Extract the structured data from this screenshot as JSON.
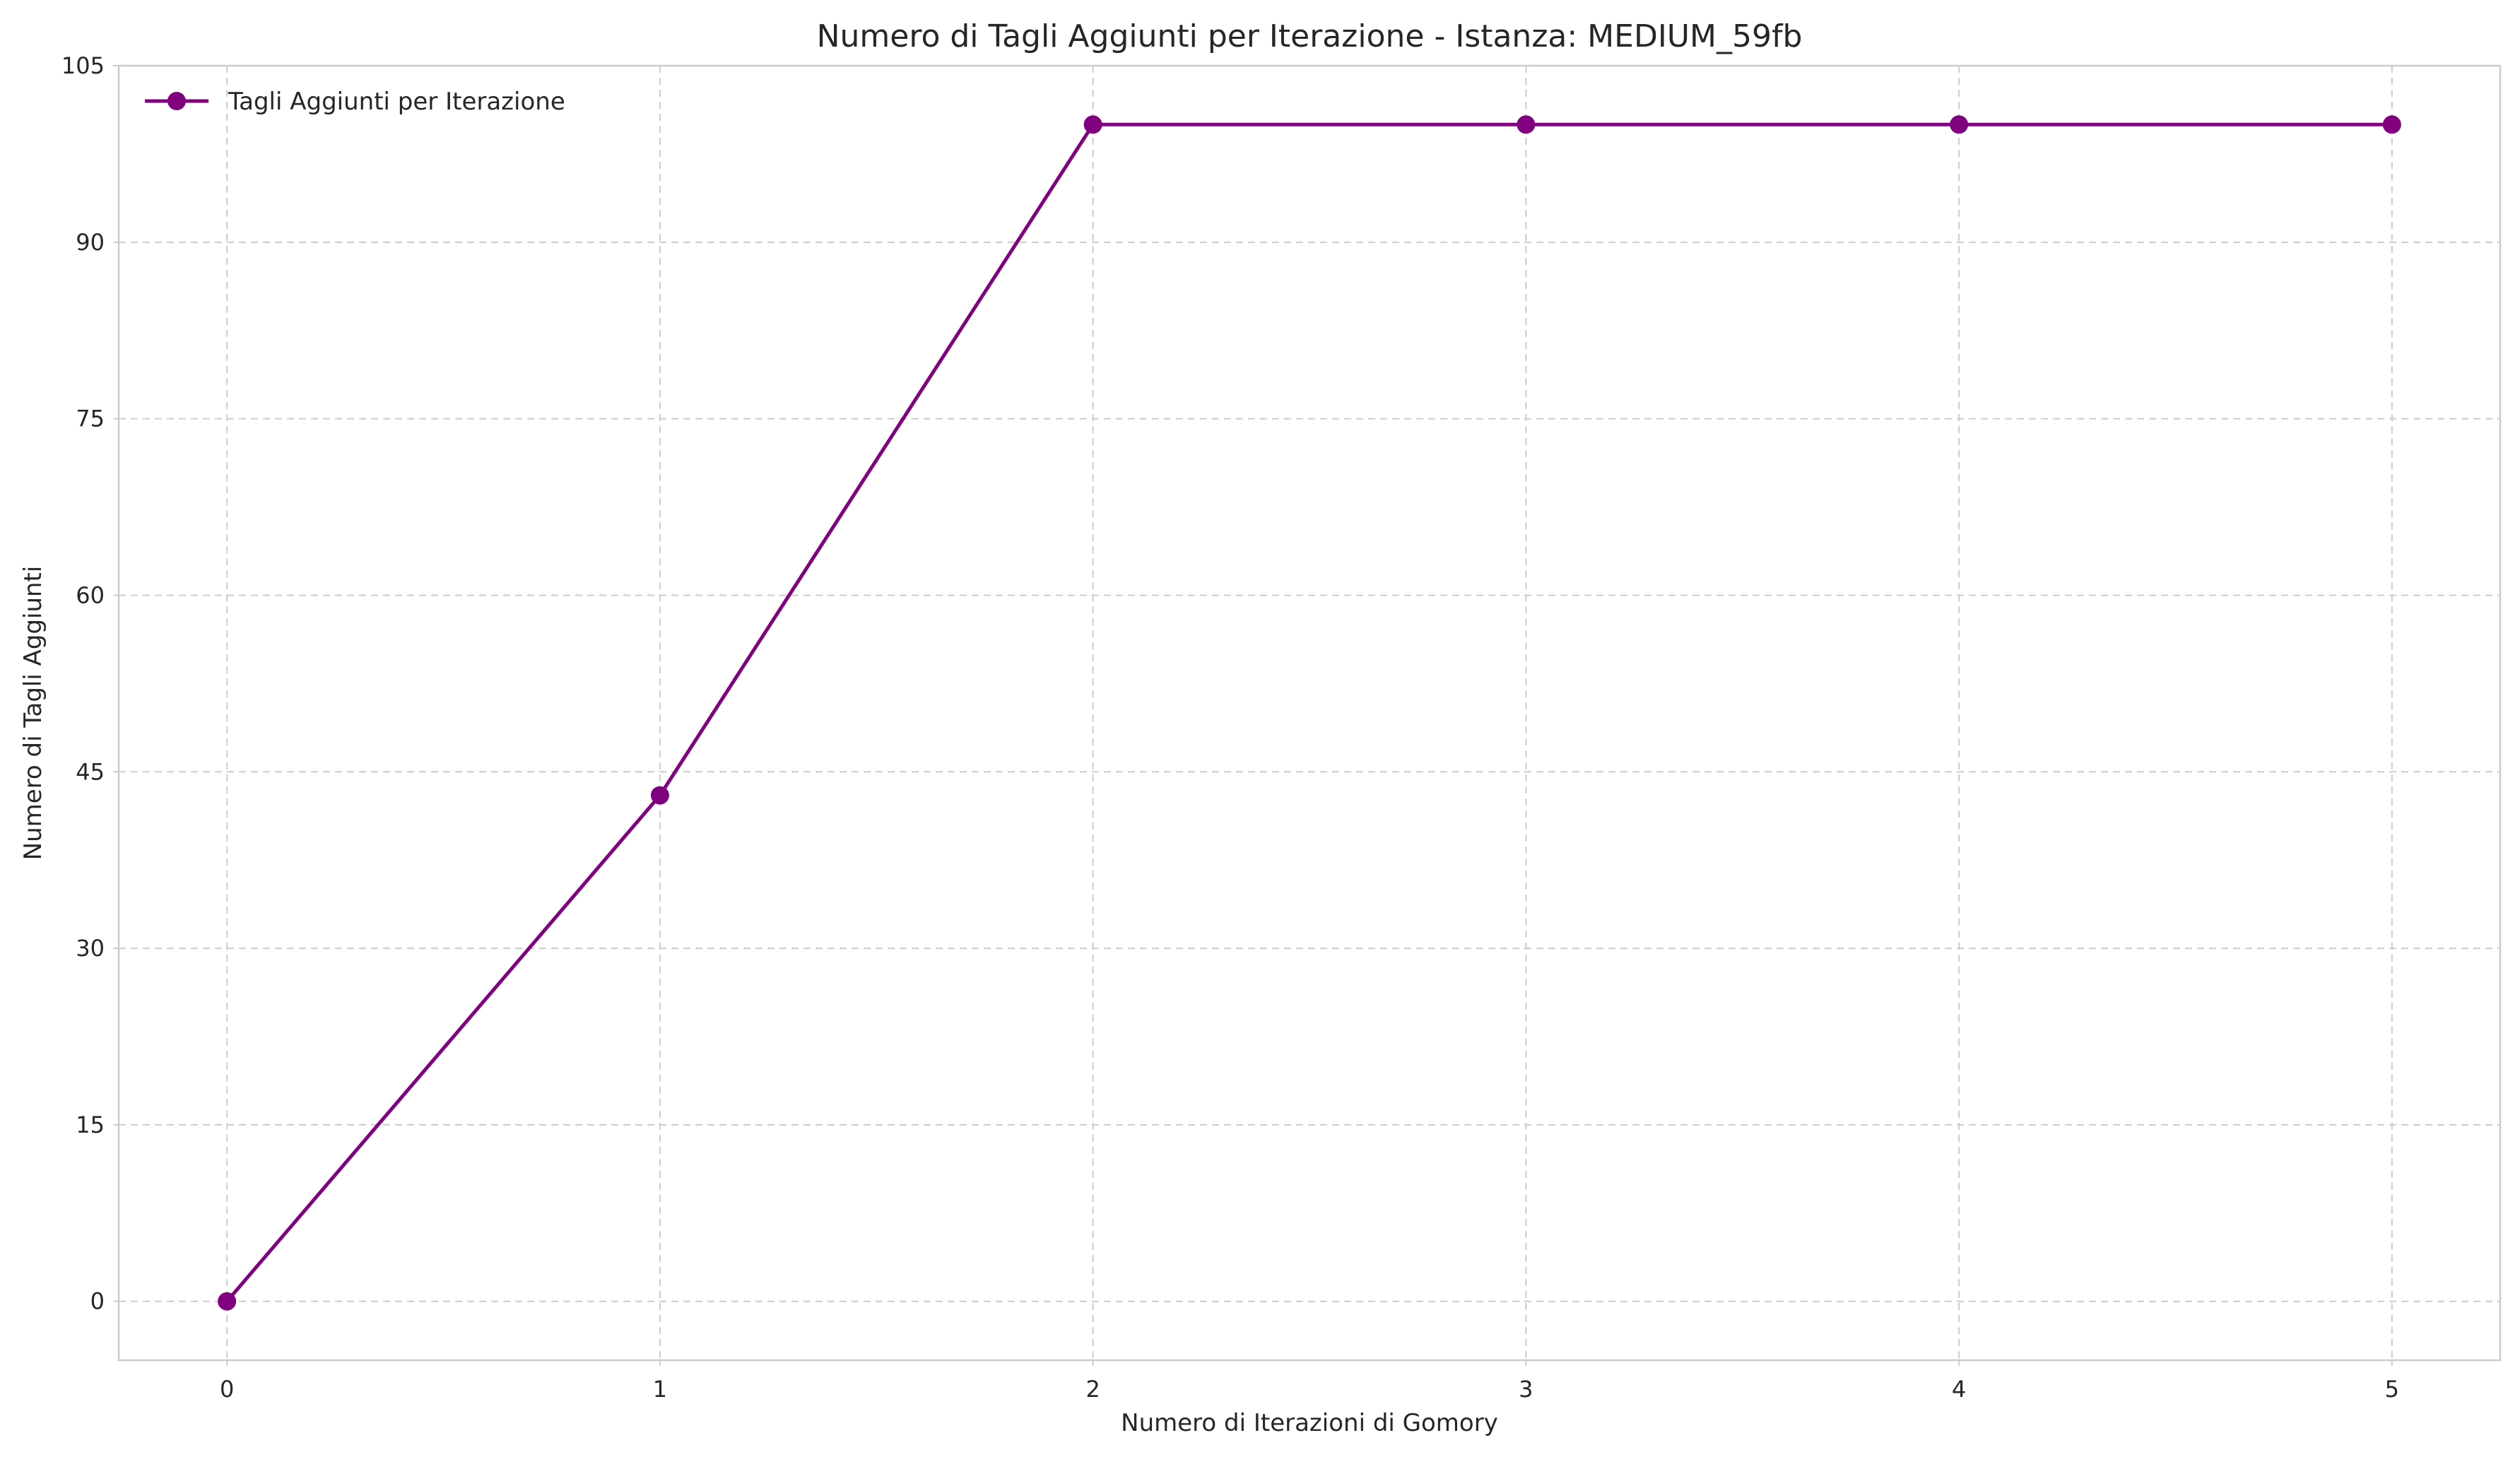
{
  "chart_data": {
    "type": "line",
    "title": "Numero di Tagli Aggiunti per Iterazione - Istanza: MEDIUM_59fb",
    "xlabel": "Numero di Iterazioni di Gomory",
    "ylabel": "Numero di Tagli Aggiunti",
    "x": [
      0,
      1,
      2,
      3,
      4,
      5
    ],
    "xticks": [
      "0",
      "1",
      "2",
      "3",
      "4",
      "5"
    ],
    "yticks": [
      "0",
      "15",
      "30",
      "45",
      "60",
      "75",
      "90",
      "105"
    ],
    "ytick_values": [
      0,
      15,
      30,
      45,
      60,
      75,
      90,
      105
    ],
    "xlim": [
      -0.25,
      5.25
    ],
    "ylim": [
      -5,
      105
    ],
    "grid": true,
    "legend_position": "top-left",
    "series": [
      {
        "name": "Tagli Aggiunti per Iterazione",
        "values": [
          0,
          43,
          100,
          100,
          100,
          100
        ],
        "color": "#800080",
        "marker": "circle"
      }
    ]
  }
}
